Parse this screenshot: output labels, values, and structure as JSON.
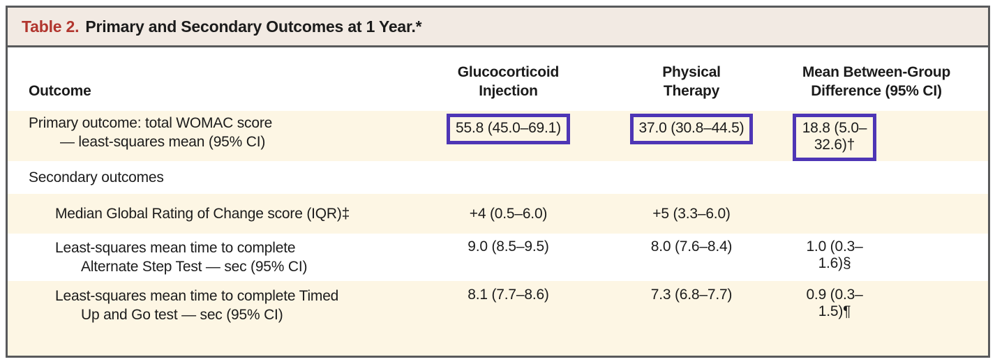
{
  "colors": {
    "accent_red": "#b1352e",
    "highlight_box_purple": "#4e36b5",
    "row_cream": "#fdf6e4",
    "title_bar_background": "#f2eae3",
    "border_gray": "#595a5c"
  },
  "title": {
    "label": "Table 2.",
    "text": "Primary and Secondary Outcomes at 1 Year.*"
  },
  "header": {
    "outcome": "Outcome",
    "group1_line1": "Glucocorticoid",
    "group1_line2": "Injection",
    "group2_line1": "Physical",
    "group2_line2": "Therapy",
    "group3_line1": "Mean Between-Group",
    "group3_line2": "Difference (95% CI)"
  },
  "rows": [
    {
      "label_line1": "Primary outcome: total WOMAC score",
      "label_line2": "— least-squares mean (95% CI)",
      "glucocorticoid_injection": "55.8 (45.0–69.1)",
      "physical_therapy": "37.0 (30.8–44.5)",
      "difference": "18.8 (5.0–32.6)†",
      "highlighted": true
    },
    {
      "label_line1": "Secondary outcomes"
    },
    {
      "label_line1": "Median Global Rating of Change score (IQR)‡",
      "glucocorticoid_injection": "+4 (0.5–6.0)",
      "physical_therapy": "+5 (3.3–6.0)",
      "difference": ""
    },
    {
      "label_line1": "Least-squares mean time to complete",
      "label_line2": "Alternate Step Test — sec (95% CI)",
      "glucocorticoid_injection": "9.0 (8.5–9.5)",
      "physical_therapy": "8.0 (7.6–8.4)",
      "difference": "1.0 (0.3–1.6)§"
    },
    {
      "label_line1": "Least-squares mean time to complete Timed",
      "label_line2": "Up and Go test — sec (95% CI)",
      "glucocorticoid_injection": "8.1 (7.7–8.6)",
      "physical_therapy": "7.3 (6.8–7.7)",
      "difference": "0.9 (0.3–1.5)¶"
    }
  ]
}
